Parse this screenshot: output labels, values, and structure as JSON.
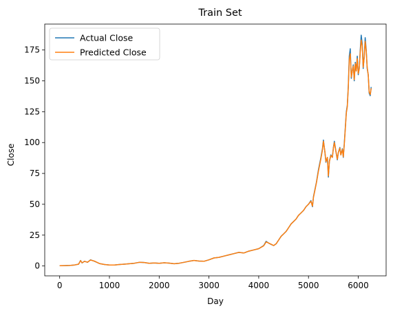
{
  "chart_data": {
    "type": "line",
    "title": "Train Set",
    "xlabel": "Day",
    "ylabel": "Close",
    "xlim": [
      -300,
      6560
    ],
    "ylim": [
      -8,
      196
    ],
    "xticks": [
      0,
      1000,
      2000,
      3000,
      4000,
      5000,
      6000
    ],
    "yticks": [
      0,
      25,
      50,
      75,
      100,
      125,
      150,
      175
    ],
    "grid": false,
    "legend_position": "top-left",
    "series": [
      {
        "name": "Actual Close",
        "color": "#1f77b4",
        "x": [
          0,
          100,
          200,
          300,
          380,
          420,
          450,
          500,
          560,
          620,
          700,
          800,
          900,
          1000,
          1100,
          1200,
          1300,
          1400,
          1500,
          1600,
          1700,
          1800,
          1900,
          2000,
          2100,
          2200,
          2300,
          2400,
          2500,
          2600,
          2700,
          2800,
          2900,
          3000,
          3100,
          3200,
          3300,
          3400,
          3500,
          3600,
          3700,
          3800,
          3900,
          4000,
          4100,
          4150,
          4200,
          4250,
          4300,
          4350,
          4400,
          4450,
          4500,
          4550,
          4600,
          4650,
          4700,
          4750,
          4800,
          4850,
          4900,
          4950,
          5000,
          5050,
          5080,
          5100,
          5130,
          5160,
          5200,
          5250,
          5280,
          5300,
          5330,
          5350,
          5380,
          5400,
          5420,
          5450,
          5480,
          5500,
          5520,
          5550,
          5580,
          5600,
          5630,
          5650,
          5680,
          5700,
          5720,
          5740,
          5760,
          5780,
          5800,
          5820,
          5840,
          5860,
          5880,
          5900,
          5920,
          5940,
          5960,
          5980,
          6000,
          6020,
          6040,
          6060,
          6080,
          6100,
          6120,
          6140,
          6160,
          6180,
          6200,
          6220,
          6240,
          6260
        ],
        "values": [
          0.2,
          0.3,
          0.4,
          0.8,
          1.5,
          4.5,
          2.5,
          3.8,
          3.0,
          5.0,
          3.8,
          2.0,
          1.2,
          0.8,
          0.8,
          1.2,
          1.5,
          1.8,
          2.2,
          3.0,
          2.8,
          2.2,
          2.5,
          2.2,
          2.6,
          2.3,
          1.8,
          2.2,
          3.0,
          3.8,
          4.5,
          4.0,
          3.8,
          5.0,
          6.5,
          7.0,
          8.0,
          9.0,
          10.0,
          11.0,
          10.5,
          12.0,
          13.0,
          14.0,
          16.5,
          20.0,
          18.5,
          17.5,
          16.5,
          18.0,
          21.0,
          24.0,
          26.0,
          28.0,
          31.0,
          34.0,
          36.0,
          38.0,
          41.0,
          43.0,
          45.0,
          48.0,
          50.0,
          53.0,
          48.0,
          56.0,
          62.0,
          68.0,
          78.0,
          88.0,
          95.0,
          102.0,
          92.0,
          84.0,
          88.0,
          72.0,
          85.0,
          90.0,
          88.0,
          96.0,
          101.0,
          93.0,
          86.0,
          92.0,
          96.0,
          90.0,
          95.0,
          88.0,
          100.0,
          112.0,
          125.0,
          130.0,
          145.0,
          170.0,
          176.0,
          152.0,
          158.0,
          163.0,
          150.0,
          165.0,
          158.0,
          170.0,
          155.0,
          160.0,
          175.0,
          187.0,
          180.0,
          160.0,
          170.0,
          185.0,
          175.0,
          160.0,
          155.0,
          140.0,
          138.0,
          145.0
        ]
      },
      {
        "name": "Predicted Close",
        "color": "#ff7f0e",
        "x": [
          0,
          100,
          200,
          300,
          380,
          420,
          450,
          500,
          560,
          620,
          700,
          800,
          900,
          1000,
          1100,
          1200,
          1300,
          1400,
          1500,
          1600,
          1700,
          1800,
          1900,
          2000,
          2100,
          2200,
          2300,
          2400,
          2500,
          2600,
          2700,
          2800,
          2900,
          3000,
          3100,
          3200,
          3300,
          3400,
          3500,
          3600,
          3700,
          3800,
          3900,
          4000,
          4100,
          4150,
          4200,
          4250,
          4300,
          4350,
          4400,
          4450,
          4500,
          4550,
          4600,
          4650,
          4700,
          4750,
          4800,
          4850,
          4900,
          4950,
          5000,
          5050,
          5080,
          5100,
          5130,
          5160,
          5200,
          5250,
          5280,
          5300,
          5330,
          5350,
          5380,
          5400,
          5420,
          5450,
          5480,
          5500,
          5520,
          5550,
          5580,
          5600,
          5630,
          5650,
          5680,
          5700,
          5720,
          5740,
          5760,
          5780,
          5800,
          5820,
          5840,
          5860,
          5880,
          5900,
          5920,
          5940,
          5960,
          5980,
          6000,
          6020,
          6040,
          6060,
          6080,
          6100,
          6120,
          6140,
          6160,
          6180,
          6200,
          6220,
          6240,
          6260
        ],
        "values": [
          0.2,
          0.3,
          0.4,
          0.8,
          1.5,
          4.3,
          2.6,
          3.7,
          3.1,
          4.8,
          3.9,
          2.0,
          1.2,
          0.8,
          0.8,
          1.2,
          1.5,
          1.8,
          2.2,
          3.0,
          2.8,
          2.2,
          2.5,
          2.2,
          2.6,
          2.3,
          1.8,
          2.2,
          3.0,
          3.8,
          4.5,
          4.0,
          3.8,
          5.0,
          6.5,
          7.0,
          8.0,
          9.0,
          10.0,
          11.0,
          10.5,
          12.0,
          13.0,
          14.0,
          16.3,
          19.5,
          18.6,
          17.6,
          16.6,
          18.0,
          21.0,
          24.0,
          26.0,
          28.0,
          31.0,
          34.0,
          36.0,
          38.0,
          41.0,
          43.0,
          45.0,
          48.0,
          50.0,
          52.5,
          48.5,
          55.5,
          61.5,
          67.5,
          77.0,
          87.0,
          94.0,
          101.0,
          92.5,
          84.5,
          88.0,
          73.0,
          84.5,
          89.5,
          88.0,
          95.5,
          100.0,
          93.0,
          86.5,
          92.0,
          95.5,
          90.0,
          94.5,
          88.5,
          99.0,
          111.0,
          124.0,
          129.0,
          144.0,
          167.0,
          172.0,
          153.0,
          158.0,
          162.0,
          151.0,
          164.0,
          158.0,
          168.0,
          156.0,
          160.0,
          173.0,
          183.0,
          178.0,
          161.0,
          169.0,
          182.0,
          174.0,
          161.0,
          155.0,
          141.0,
          139.0,
          144.0
        ]
      }
    ]
  }
}
